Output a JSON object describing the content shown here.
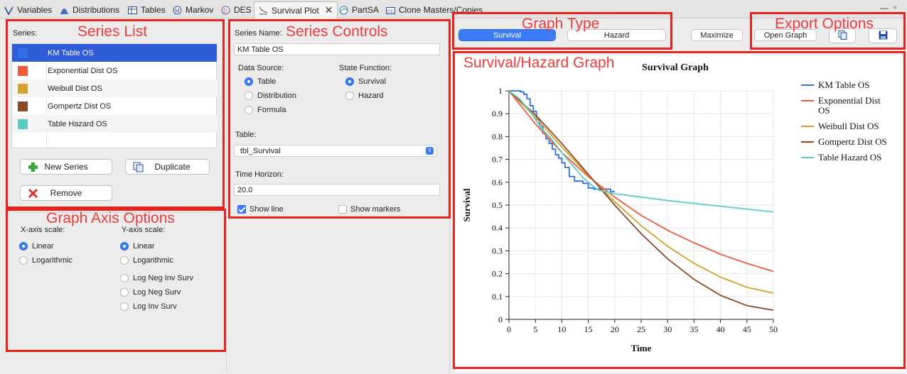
{
  "tabs": [
    {
      "label": "Variables",
      "icon": "variables-icon"
    },
    {
      "label": "Distributions",
      "icon": "distributions-icon"
    },
    {
      "label": "Tables",
      "icon": "tables-icon"
    },
    {
      "label": "Markov",
      "icon": "markov-icon"
    },
    {
      "label": "DES",
      "icon": "des-icon"
    },
    {
      "label": "Survival Plot",
      "icon": "survival-plot-icon",
      "active": true
    },
    {
      "label": "PartSA",
      "icon": "partsa-icon"
    },
    {
      "label": "Clone Masters/Copies",
      "icon": "clone-icon"
    }
  ],
  "annotations": {
    "series_list": "Series List",
    "series_controls": "Series Controls",
    "graph_type": "Graph Type",
    "export_options": "Export Options",
    "graph_axis": "Graph Axis Options",
    "graph": "Survival/Hazard Graph"
  },
  "series_panel": {
    "label": "Series:",
    "items": [
      {
        "name": "KM Table OS",
        "color": "#2f6fe8",
        "selected": true
      },
      {
        "name": "Exponential Dist OS",
        "color": "#f05a3c"
      },
      {
        "name": "Weibull Dist OS",
        "color": "#d1a12a"
      },
      {
        "name": "Gompertz Dist OS",
        "color": "#8b4a25"
      },
      {
        "name": "Table Hazard OS",
        "color": "#5ccbc4"
      }
    ],
    "new_series": "New Series",
    "duplicate": "Duplicate",
    "remove": "Remove"
  },
  "axis_options": {
    "x_label": "X-axis scale:",
    "x_options": [
      "Linear",
      "Logarithmic"
    ],
    "x_selected": 0,
    "y_label": "Y-axis scale:",
    "y_options": [
      "Linear",
      "Logarithmic",
      "Log Neg Inv Surv",
      "Log Neg Surv",
      "Log Inv Surv"
    ],
    "y_selected": 0
  },
  "controls": {
    "series_name_label": "Series Name:",
    "series_name_value": "KM Table OS",
    "data_source_label": "Data Source:",
    "data_source_options": [
      "Table",
      "Distribution",
      "Formula"
    ],
    "data_source_selected": 0,
    "state_function_label": "State Function:",
    "state_function_options": [
      "Survival",
      "Hazard"
    ],
    "state_function_selected": 0,
    "table_label": "Table:",
    "table_value": "tbl_Survival",
    "time_horizon_label": "Time Horizon:",
    "time_horizon_value": "20.0",
    "show_line": "Show line",
    "show_line_checked": true,
    "show_markers": "Show markers",
    "show_markers_checked": false
  },
  "graph_type": {
    "survival": "Survival",
    "hazard": "Hazard",
    "selected": "Survival",
    "maximize": "Maximize"
  },
  "export": {
    "open_graph": "Open Graph",
    "copy_icon": "copy-icon",
    "save_icon": "save-icon"
  },
  "chart_data": {
    "type": "line",
    "title": "Survival Graph",
    "xlabel": "Time",
    "ylabel": "Survival",
    "xlim": [
      0,
      50
    ],
    "ylim": [
      0,
      1
    ],
    "x_ticks": [
      0,
      5,
      10,
      15,
      20,
      25,
      30,
      35,
      40,
      45,
      50
    ],
    "y_ticks": [
      0,
      0.1,
      0.2,
      0.3,
      0.4,
      0.5,
      0.6,
      0.7,
      0.8,
      0.9,
      1
    ],
    "grid": true,
    "legend_position": "right",
    "series": [
      {
        "name": "KM Table OS",
        "color": "#2f6fe8",
        "step": true,
        "x": [
          0,
          1.2,
          2.2,
          2.8,
          3.4,
          4.0,
          4.6,
          5.2,
          5.8,
          6.4,
          7.0,
          7.6,
          8.2,
          8.8,
          9.4,
          10.0,
          10.6,
          11.4,
          12.4,
          13.0,
          14.0,
          15.0,
          16.0,
          18.5,
          19.2,
          20.0
        ],
        "y": [
          1.0,
          1.0,
          0.995,
          0.985,
          0.965,
          0.935,
          0.91,
          0.875,
          0.845,
          0.815,
          0.79,
          0.77,
          0.745,
          0.72,
          0.705,
          0.685,
          0.665,
          0.625,
          0.605,
          0.605,
          0.595,
          0.575,
          0.57,
          0.57,
          0.56,
          0.56
        ]
      },
      {
        "name": "Exponential Dist OS",
        "color": "#f05a3c",
        "x": [
          0,
          5,
          10,
          15,
          20,
          25,
          30,
          35,
          40,
          45,
          50
        ],
        "y": [
          1.0,
          0.855,
          0.73,
          0.625,
          0.535,
          0.455,
          0.39,
          0.335,
          0.285,
          0.245,
          0.21
        ]
      },
      {
        "name": "Weibull Dist OS",
        "color": "#d1a12a",
        "x": [
          0,
          5,
          10,
          15,
          20,
          25,
          30,
          35,
          40,
          45,
          50
        ],
        "y": [
          1.0,
          0.885,
          0.755,
          0.63,
          0.515,
          0.41,
          0.32,
          0.245,
          0.185,
          0.14,
          0.115
        ]
      },
      {
        "name": "Gompertz Dist OS",
        "color": "#8b4a25",
        "x": [
          0,
          5,
          10,
          15,
          20,
          25,
          30,
          35,
          40,
          45,
          50
        ],
        "y": [
          1.0,
          0.895,
          0.77,
          0.635,
          0.5,
          0.375,
          0.265,
          0.175,
          0.105,
          0.06,
          0.04
        ]
      },
      {
        "name": "Table Hazard OS",
        "color": "#5ccbc4",
        "x": [
          0,
          2,
          4,
          6,
          8,
          10,
          12,
          14,
          15.5,
          17,
          20,
          30,
          40,
          50
        ],
        "y": [
          1.0,
          0.965,
          0.91,
          0.84,
          0.79,
          0.73,
          0.675,
          0.62,
          0.59,
          0.565,
          0.55,
          0.52,
          0.495,
          0.47
        ]
      }
    ]
  }
}
